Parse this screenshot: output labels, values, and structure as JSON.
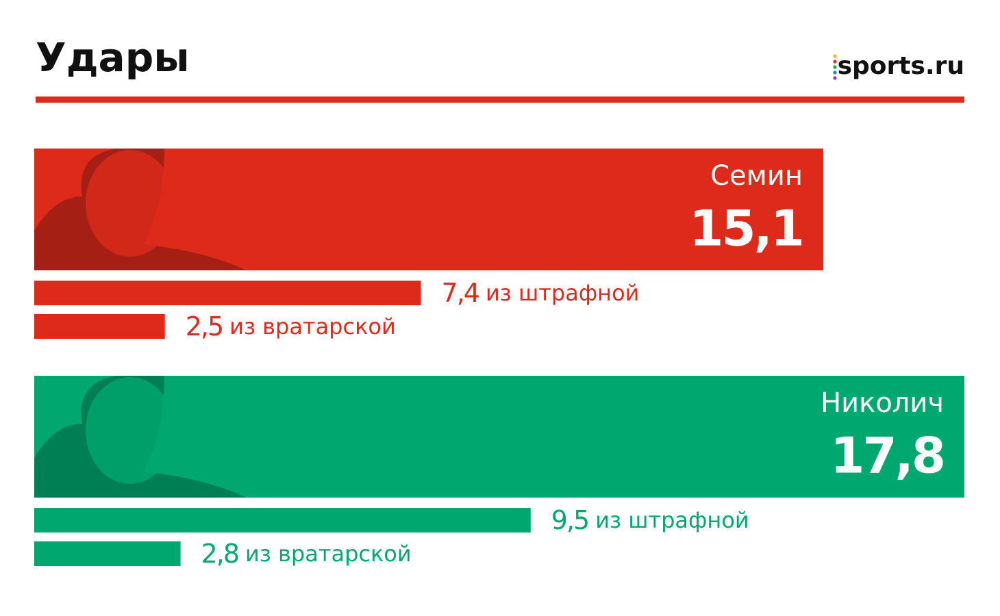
{
  "chart_data": {
    "type": "bar",
    "title": "Удары",
    "brand": "sports.ru",
    "categories": [
      "из штрафной",
      "из вратарской"
    ],
    "series": [
      {
        "name": "Семин",
        "color": "#dd2a1b",
        "total": 15.1,
        "total_label": "15,1",
        "values": [
          7.4,
          2.5
        ],
        "value_labels": [
          "7,4",
          "2,5"
        ]
      },
      {
        "name": "Николич",
        "color": "#00a870",
        "total": 17.8,
        "total_label": "17,8",
        "values": [
          9.5,
          2.8
        ],
        "value_labels": [
          "9,5",
          "2,8"
        ]
      }
    ]
  }
}
